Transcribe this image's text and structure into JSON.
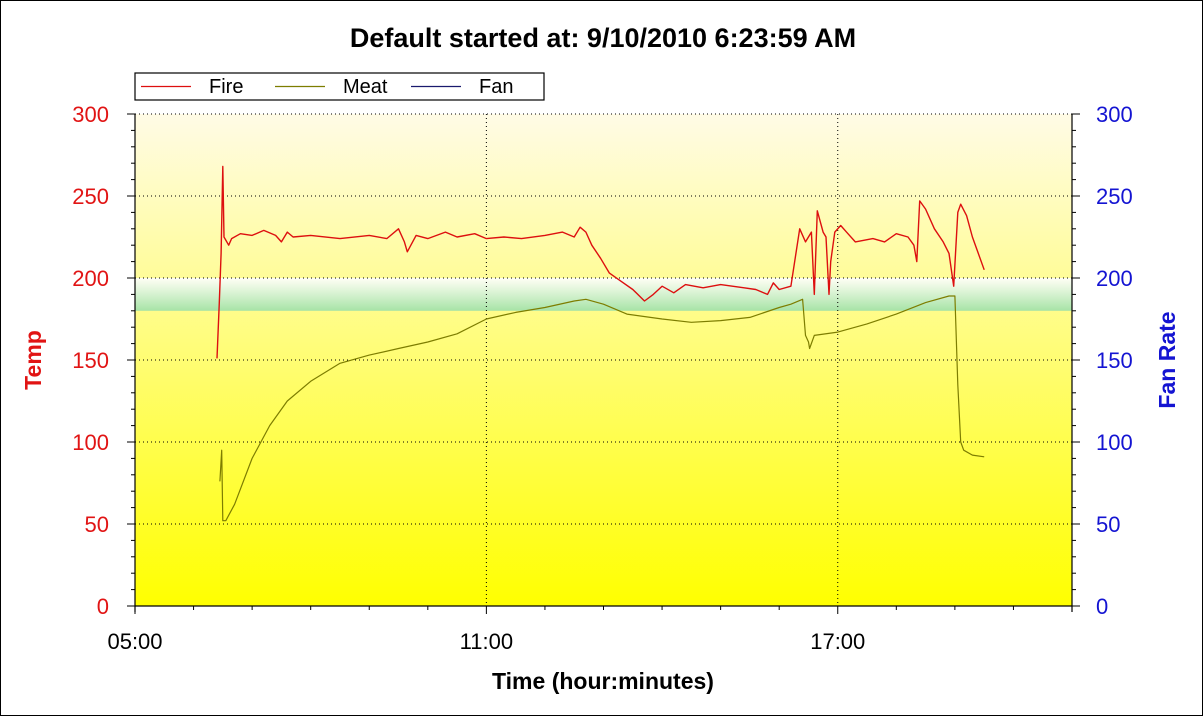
{
  "chart_data": {
    "type": "line",
    "title": "Default started at: 9/10/2010 6:23:59 AM",
    "xlabel": "Time (hour:minutes)",
    "ylabel_left": "Temp",
    "ylabel_right": "Fan Rate",
    "x_unit": "hours",
    "xlim": [
      5.0,
      21.0
    ],
    "xticks": [
      {
        "value": 5,
        "label": "05:00"
      },
      {
        "value": 11,
        "label": "11:00"
      },
      {
        "value": 17,
        "label": "17:00"
      }
    ],
    "ylim_left": [
      0,
      300
    ],
    "ylim_right": [
      0,
      300
    ],
    "yticks_left": [
      0,
      50,
      100,
      150,
      200,
      250,
      300
    ],
    "yticks_right": [
      0,
      50,
      100,
      150,
      200,
      250,
      300
    ],
    "grid": true,
    "legend_position": "top-left",
    "target_band": [
      180,
      200
    ],
    "colors": {
      "fire": "#dd0f0f",
      "meat": "#7d7d00",
      "fan": "#1a1a6e",
      "left_axis": "#e11414",
      "right_axis": "#1414d2",
      "band": "#a6e3a6",
      "bg_top": "#fffbe6",
      "bg_bottom": "#ffff00"
    },
    "series": [
      {
        "name": "Fire",
        "key": "fire",
        "points": [
          [
            6.4,
            151
          ],
          [
            6.44,
            185
          ],
          [
            6.47,
            215
          ],
          [
            6.5,
            268
          ],
          [
            6.52,
            225
          ],
          [
            6.6,
            220
          ],
          [
            6.65,
            224
          ],
          [
            6.8,
            227
          ],
          [
            7.0,
            226
          ],
          [
            7.2,
            229
          ],
          [
            7.4,
            226
          ],
          [
            7.5,
            222
          ],
          [
            7.6,
            228
          ],
          [
            7.7,
            225
          ],
          [
            8.0,
            226
          ],
          [
            8.5,
            224
          ],
          [
            9.0,
            226
          ],
          [
            9.3,
            224
          ],
          [
            9.5,
            230
          ],
          [
            9.6,
            222
          ],
          [
            9.65,
            216
          ],
          [
            9.8,
            226
          ],
          [
            10.0,
            224
          ],
          [
            10.3,
            228
          ],
          [
            10.5,
            225
          ],
          [
            10.8,
            227
          ],
          [
            11.0,
            224
          ],
          [
            11.3,
            225
          ],
          [
            11.6,
            224
          ],
          [
            12.0,
            226
          ],
          [
            12.3,
            228
          ],
          [
            12.5,
            225
          ],
          [
            12.6,
            231
          ],
          [
            12.7,
            228
          ],
          [
            12.8,
            220
          ],
          [
            12.95,
            212
          ],
          [
            13.1,
            203
          ],
          [
            13.3,
            198
          ],
          [
            13.5,
            193
          ],
          [
            13.7,
            186
          ],
          [
            13.85,
            190
          ],
          [
            14.0,
            195
          ],
          [
            14.2,
            191
          ],
          [
            14.4,
            196
          ],
          [
            14.7,
            194
          ],
          [
            15.0,
            196
          ],
          [
            15.4,
            194
          ],
          [
            15.6,
            193
          ],
          [
            15.8,
            190
          ],
          [
            15.9,
            197
          ],
          [
            16.0,
            193
          ],
          [
            16.2,
            195
          ],
          [
            16.35,
            230
          ],
          [
            16.45,
            222
          ],
          [
            16.55,
            228
          ],
          [
            16.6,
            190
          ],
          [
            16.65,
            241
          ],
          [
            16.75,
            228
          ],
          [
            16.8,
            225
          ],
          [
            16.85,
            190
          ],
          [
            16.88,
            210
          ],
          [
            16.95,
            228
          ],
          [
            17.05,
            232
          ],
          [
            17.15,
            228
          ],
          [
            17.3,
            222
          ],
          [
            17.6,
            224
          ],
          [
            17.8,
            222
          ],
          [
            18.0,
            227
          ],
          [
            18.2,
            225
          ],
          [
            18.3,
            220
          ],
          [
            18.35,
            210
          ],
          [
            18.4,
            247
          ],
          [
            18.5,
            242
          ],
          [
            18.65,
            230
          ],
          [
            18.8,
            222
          ],
          [
            18.9,
            215
          ],
          [
            18.98,
            195
          ],
          [
            19.05,
            240
          ],
          [
            19.1,
            245
          ],
          [
            19.2,
            238
          ],
          [
            19.3,
            225
          ],
          [
            19.4,
            215
          ],
          [
            19.5,
            205
          ]
        ]
      },
      {
        "name": "Meat",
        "key": "meat",
        "points": [
          [
            6.45,
            76
          ],
          [
            6.48,
            95
          ],
          [
            6.5,
            52
          ],
          [
            6.55,
            52
          ],
          [
            6.7,
            62
          ],
          [
            7.0,
            90
          ],
          [
            7.3,
            110
          ],
          [
            7.6,
            125
          ],
          [
            8.0,
            137
          ],
          [
            8.5,
            148
          ],
          [
            9.0,
            153
          ],
          [
            9.5,
            157
          ],
          [
            10.0,
            161
          ],
          [
            10.5,
            166
          ],
          [
            11.0,
            175
          ],
          [
            11.5,
            179
          ],
          [
            12.0,
            182
          ],
          [
            12.5,
            186
          ],
          [
            12.7,
            187
          ],
          [
            13.0,
            184
          ],
          [
            13.4,
            178
          ],
          [
            14.0,
            175
          ],
          [
            14.5,
            173
          ],
          [
            15.0,
            174
          ],
          [
            15.5,
            176
          ],
          [
            16.0,
            182
          ],
          [
            16.2,
            184
          ],
          [
            16.4,
            187
          ],
          [
            16.45,
            165
          ],
          [
            16.5,
            161
          ],
          [
            16.52,
            157
          ],
          [
            16.6,
            165
          ],
          [
            17.0,
            167
          ],
          [
            17.5,
            172
          ],
          [
            18.0,
            178
          ],
          [
            18.5,
            185
          ],
          [
            18.9,
            189
          ],
          [
            19.0,
            189
          ],
          [
            19.05,
            135
          ],
          [
            19.1,
            100
          ],
          [
            19.15,
            95
          ],
          [
            19.3,
            92
          ],
          [
            19.5,
            91
          ]
        ]
      },
      {
        "name": "Fan",
        "key": "fan",
        "points": []
      }
    ]
  }
}
